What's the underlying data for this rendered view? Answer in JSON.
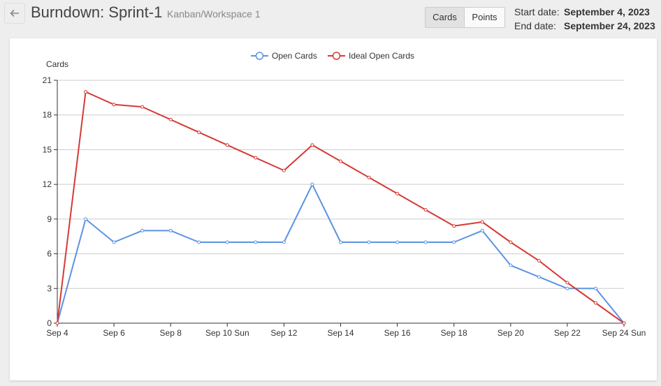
{
  "header": {
    "title": "Burndown: Sprint-1",
    "subtitle": "Kanban/Workspace 1",
    "toggle": {
      "cards_label": "Cards",
      "points_label": "Points",
      "selected": "Cards"
    },
    "start_label": "Start date:",
    "start_value": "September 4, 2023",
    "end_label": "End date:",
    "end_value": "September 24, 2023"
  },
  "colors": {
    "open": "#5b93e3",
    "ideal": "#d53a35",
    "grid": "#cccccc"
  },
  "chart_data": {
    "type": "line",
    "ylabel": "Cards",
    "ylim": [
      0,
      21
    ],
    "yticks": [
      0,
      3,
      6,
      9,
      12,
      15,
      18,
      21
    ],
    "x": [
      "Sep 4",
      "Sep 5",
      "Sep 6",
      "Sep 7",
      "Sep 8",
      "Sep 9",
      "Sep 10 Sun",
      "Sep 11",
      "Sep 12",
      "Sep 13",
      "Sep 14",
      "Sep 15",
      "Sep 16",
      "Sep 17",
      "Sep 18",
      "Sep 19",
      "Sep 20",
      "Sep 21",
      "Sep 22",
      "Sep 23",
      "Sep 24 Sun"
    ],
    "xtick_labels": [
      "Sep 4",
      "Sep 6",
      "Sep 8",
      "Sep 10 Sun",
      "Sep 12",
      "Sep 14",
      "Sep 16",
      "Sep 18",
      "Sep 20",
      "Sep 22",
      "Sep 24 Sun"
    ],
    "legend": "top-center",
    "series": [
      {
        "name": "Open Cards",
        "values": [
          0,
          9,
          7,
          8,
          8,
          7,
          7,
          7,
          7,
          12,
          7,
          7,
          7,
          7,
          7,
          8,
          5,
          4,
          3,
          3,
          0
        ]
      },
      {
        "name": "Ideal Open Cards",
        "values": [
          0,
          20,
          18.9,
          18.7,
          17.6,
          16.5,
          15.4,
          14.3,
          13.2,
          15.4,
          14,
          12.6,
          11.2,
          9.8,
          8.4,
          8.75,
          7,
          5.4,
          3.5,
          1.75,
          0
        ]
      }
    ]
  }
}
